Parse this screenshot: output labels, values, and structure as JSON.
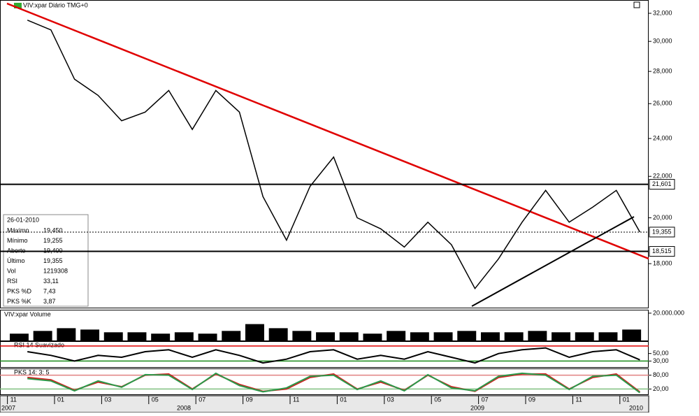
{
  "chart_data": [
    {
      "type": "line",
      "title": "VIV:xpar Diário TMG+0",
      "log": true,
      "x": [
        "2007-11",
        "2007-12",
        "2008-01",
        "2008-02",
        "2008-03",
        "2008-04",
        "2008-05",
        "2008-06",
        "2008-07",
        "2008-08",
        "2008-09",
        "2008-10",
        "2008-11",
        "2008-12",
        "2009-01",
        "2009-02",
        "2009-03",
        "2009-04",
        "2009-05",
        "2009-06",
        "2009-07",
        "2009-08",
        "2009-09",
        "2009-10",
        "2009-11",
        "2009-12",
        "2010-01"
      ],
      "series": [
        {
          "color": "#000000",
          "values": [
            31500,
            30800,
            27500,
            26500,
            25000,
            25500,
            26800,
            24500,
            26800,
            25500,
            21000,
            19000,
            21500,
            23000,
            20000,
            19500,
            18700,
            19800,
            18800,
            17000,
            18200,
            19800,
            21300,
            19800,
            20500,
            21300,
            19355
          ]
        }
      ],
      "ylim": [
        16270,
        32940
      ],
      "yticks": [
        {
          "value": 18000,
          "label": "18,000"
        },
        {
          "value": 20000,
          "label": "20,000"
        },
        {
          "value": 22000,
          "label": "22,000"
        },
        {
          "value": 24000,
          "label": "24,000"
        },
        {
          "value": 26000,
          "label": "26,000"
        },
        {
          "value": 28000,
          "label": "28,000"
        },
        {
          "value": 30000,
          "label": "30,000"
        },
        {
          "value": 32000,
          "label": "32,000"
        }
      ],
      "levels": [
        {
          "value": 21601,
          "label": "21,601",
          "style": "solid"
        },
        {
          "value": 18515,
          "label": "18,515",
          "style": "solid"
        },
        {
          "value": 19355,
          "label": "19,355",
          "style": "dotted"
        }
      ]
    },
    {
      "type": "bar",
      "title": "VIV:xpar Volume",
      "color": "#000000",
      "values": [
        5000000,
        7000000,
        9000000,
        8000000,
        6000000,
        6000000,
        5000000,
        6000000,
        5000000,
        7000000,
        12000000,
        9000000,
        7000000,
        6000000,
        6000000,
        5000000,
        7000000,
        6000000,
        6000000,
        7000000,
        6000000,
        6000000,
        7000000,
        6000000,
        6000000,
        6000000,
        8000000
      ],
      "ylim": [
        0,
        22000000
      ],
      "yticks": [
        {
          "value": 20000000,
          "label": "20.000.000"
        }
      ]
    },
    {
      "type": "line",
      "title": "RSI 14 Suavizado",
      "series": [
        {
          "color": "#000000",
          "values": [
            55,
            45,
            30,
            45,
            40,
            55,
            60,
            40,
            60,
            45,
            25,
            35,
            55,
            60,
            35,
            45,
            35,
            55,
            40,
            25,
            50,
            60,
            65,
            40,
            55,
            60,
            33.11
          ]
        }
      ],
      "ylim": [
        14,
        81
      ],
      "yticks": [
        {
          "value": 50,
          "label": "50,00"
        },
        {
          "value": 30,
          "label": "30,00"
        }
      ],
      "levels": [
        {
          "value": 70,
          "color": "#e00000"
        },
        {
          "value": 30,
          "color": "#1a8a1a"
        }
      ]
    },
    {
      "type": "line",
      "title": "PKS 14; 3; 5",
      "series": [
        {
          "color": "#d02020",
          "values": [
            70,
            60,
            15,
            50,
            30,
            80,
            85,
            20,
            85,
            40,
            10,
            20,
            70,
            85,
            20,
            50,
            15,
            80,
            30,
            10,
            70,
            85,
            85,
            20,
            70,
            85,
            7.43
          ]
        },
        {
          "color": "#2a9a4a",
          "values": [
            65,
            55,
            12,
            55,
            28,
            82,
            80,
            18,
            88,
            35,
            8,
            25,
            75,
            80,
            18,
            55,
            12,
            82,
            25,
            12,
            75,
            88,
            80,
            18,
            75,
            80,
            3.87
          ]
        }
      ],
      "ylim": [
        -3,
        106
      ],
      "yticks": [
        {
          "value": 80,
          "label": "80,00"
        },
        {
          "value": 20,
          "label": "20,00"
        }
      ],
      "levels": [
        {
          "value": 80,
          "color": "#e08080"
        },
        {
          "value": 20,
          "color": "#80c080"
        }
      ]
    }
  ],
  "x_axis": {
    "ticks": [
      {
        "value": "2007-11",
        "label": "11"
      },
      {
        "value": "2008-01",
        "label": "01"
      },
      {
        "value": "2008-03",
        "label": "03"
      },
      {
        "value": "2008-05",
        "label": "05"
      },
      {
        "value": "2008-07",
        "label": "07"
      },
      {
        "value": "2008-09",
        "label": "09"
      },
      {
        "value": "2008-11",
        "label": "11"
      },
      {
        "value": "2009-01",
        "label": "01"
      },
      {
        "value": "2009-03",
        "label": "03"
      },
      {
        "value": "2009-05",
        "label": "05"
      },
      {
        "value": "2009-07",
        "label": "07"
      },
      {
        "value": "2009-09",
        "label": "09"
      },
      {
        "value": "2009-11",
        "label": "11"
      },
      {
        "value": "2010-01",
        "label": "01"
      }
    ],
    "years": [
      "2007",
      "2008",
      "2009",
      "2010"
    ]
  },
  "info_box": {
    "date": "26-01-2010",
    "rows": [
      [
        "Máximo",
        "19,450"
      ],
      [
        "Mínimo",
        "19,255"
      ],
      [
        "Aberto",
        "19,400"
      ],
      [
        "Último",
        "19,355"
      ],
      [
        "Vol",
        "1219308"
      ],
      [
        "RSI",
        "33,11"
      ],
      [
        "PKS %D",
        "7,43"
      ],
      [
        "PKS %K",
        "3,87"
      ]
    ]
  }
}
